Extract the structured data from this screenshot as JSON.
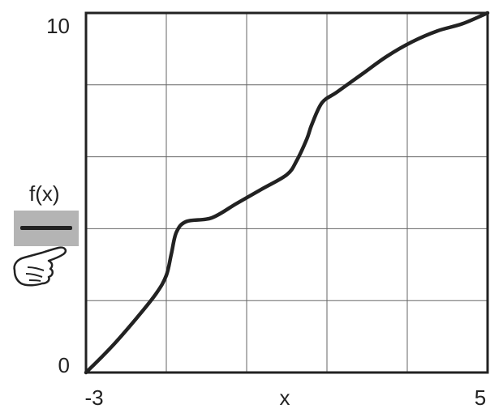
{
  "chart_data": {
    "type": "line",
    "xlabel": "x",
    "xlim": [
      -3,
      5
    ],
    "ylim": [
      0,
      10
    ],
    "x_tick_labels": [
      "-3",
      "5"
    ],
    "y_tick_labels": [
      "0",
      "10"
    ],
    "grid": true,
    "legend_placement": "left",
    "series": [
      {
        "name": "f(x)",
        "color": "#222222",
        "x": [
          -3.0,
          -2.5,
          -2.0,
          -1.6,
          -1.4,
          -1.3,
          -1.2,
          -1.0,
          -0.5,
          0.0,
          0.5,
          1.0,
          1.2,
          1.4,
          1.5,
          1.7,
          2.0,
          2.5,
          3.0,
          3.5,
          4.0,
          4.5,
          5.0
        ],
        "y": [
          0.0,
          0.7,
          1.5,
          2.2,
          2.7,
          3.3,
          3.9,
          4.2,
          4.3,
          4.7,
          5.1,
          5.5,
          5.9,
          6.5,
          6.9,
          7.5,
          7.8,
          8.3,
          8.8,
          9.2,
          9.5,
          9.7,
          10.0
        ]
      }
    ]
  },
  "legend": {
    "label": "f(x)"
  },
  "icons": {
    "pointer": "pointing-hand-icon"
  }
}
